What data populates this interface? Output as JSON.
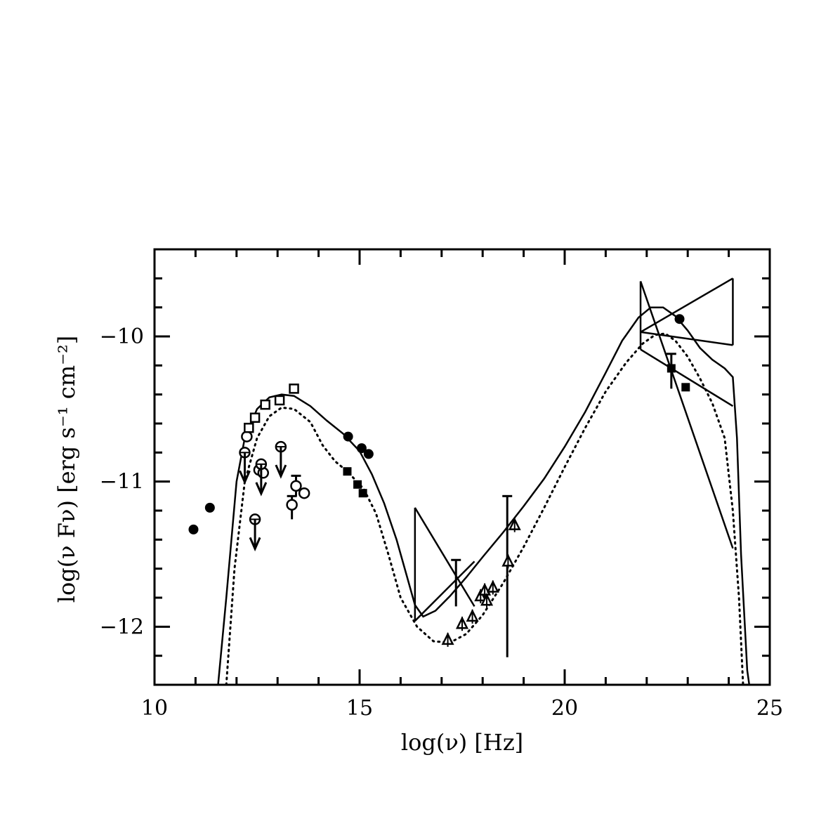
{
  "chart_data": {
    "type": "scatter",
    "xlabel": "log(ν) [Hz]",
    "ylabel": "log(ν Fν) [erg s⁻¹ cm⁻²]",
    "xlim": [
      10,
      25
    ],
    "ylim": [
      -12.4,
      -9.4
    ],
    "x_ticks": [
      10,
      15,
      20,
      25
    ],
    "y_ticks": [
      -12,
      -11,
      -10
    ],
    "grid": false,
    "series": [
      {
        "marker": "filled-circle",
        "points": [
          [
            10.95,
            -11.33
          ],
          [
            11.35,
            -11.18
          ],
          [
            14.72,
            -10.69
          ],
          [
            15.05,
            -10.77
          ],
          [
            15.22,
            -10.81
          ],
          [
            22.8,
            -9.88
          ]
        ]
      },
      {
        "marker": "open-circle",
        "points": [
          [
            12.25,
            -10.69
          ],
          [
            12.55,
            -10.92
          ],
          [
            12.65,
            -10.94
          ],
          [
            13.45,
            -11.03
          ],
          [
            13.35,
            -11.16
          ],
          [
            13.65,
            -11.08
          ]
        ]
      },
      {
        "marker": "open-square",
        "points": [
          [
            12.45,
            -10.56
          ],
          [
            12.7,
            -10.47
          ],
          [
            13.05,
            -10.44
          ],
          [
            13.4,
            -10.36
          ],
          [
            12.3,
            -10.63
          ]
        ]
      },
      {
        "marker": "filled-square",
        "points": [
          [
            14.7,
            -10.93
          ],
          [
            14.95,
            -11.02
          ],
          [
            15.08,
            -11.08
          ],
          [
            22.6,
            -10.22
          ],
          [
            22.95,
            -10.35
          ]
        ]
      },
      {
        "marker": "open-triangle",
        "points": [
          [
            17.15,
            -12.09
          ],
          [
            17.5,
            -11.98
          ],
          [
            17.75,
            -11.93
          ],
          [
            17.95,
            -11.79
          ],
          [
            18.05,
            -11.75
          ],
          [
            18.25,
            -11.73
          ],
          [
            18.1,
            -11.82
          ],
          [
            18.62,
            -11.55
          ],
          [
            18.78,
            -11.3
          ]
        ]
      },
      {
        "marker": "upper-limit-open-circle",
        "points": [
          [
            12.2,
            -10.8
          ],
          [
            12.45,
            -11.26
          ],
          [
            13.08,
            -10.76
          ],
          [
            12.6,
            -10.88
          ]
        ]
      }
    ],
    "curves": [
      {
        "style": "solid",
        "points": [
          [
            11.55,
            -12.4
          ],
          [
            11.75,
            -11.8
          ],
          [
            12.0,
            -11.0
          ],
          [
            12.2,
            -10.7
          ],
          [
            12.5,
            -10.5
          ],
          [
            12.8,
            -10.42
          ],
          [
            13.1,
            -10.4
          ],
          [
            13.4,
            -10.41
          ],
          [
            13.8,
            -10.48
          ],
          [
            14.2,
            -10.58
          ],
          [
            14.6,
            -10.67
          ],
          [
            15.0,
            -10.79
          ],
          [
            15.3,
            -10.95
          ],
          [
            15.6,
            -11.15
          ],
          [
            15.9,
            -11.4
          ],
          [
            16.15,
            -11.65
          ],
          [
            16.35,
            -11.85
          ],
          [
            16.55,
            -11.93
          ],
          [
            16.85,
            -11.89
          ],
          [
            17.2,
            -11.79
          ],
          [
            17.6,
            -11.66
          ],
          [
            18.0,
            -11.52
          ],
          [
            18.5,
            -11.35
          ],
          [
            19.0,
            -11.17
          ],
          [
            19.5,
            -10.98
          ],
          [
            20.0,
            -10.76
          ],
          [
            20.5,
            -10.52
          ],
          [
            21.0,
            -10.25
          ],
          [
            21.4,
            -10.03
          ],
          [
            21.8,
            -9.87
          ],
          [
            22.1,
            -9.8
          ],
          [
            22.4,
            -9.8
          ],
          [
            22.7,
            -9.86
          ],
          [
            23.0,
            -9.96
          ],
          [
            23.3,
            -10.08
          ],
          [
            23.6,
            -10.16
          ],
          [
            23.9,
            -10.22
          ],
          [
            24.1,
            -10.28
          ],
          [
            24.2,
            -10.7
          ],
          [
            24.3,
            -11.5
          ],
          [
            24.45,
            -12.3
          ],
          [
            24.5,
            -12.4
          ]
        ]
      },
      {
        "style": "dotted",
        "points": [
          [
            11.75,
            -12.4
          ],
          [
            11.95,
            -11.6
          ],
          [
            12.2,
            -11.0
          ],
          [
            12.5,
            -10.7
          ],
          [
            12.8,
            -10.55
          ],
          [
            13.1,
            -10.49
          ],
          [
            13.4,
            -10.5
          ],
          [
            13.8,
            -10.59
          ],
          [
            14.1,
            -10.75
          ],
          [
            14.4,
            -10.86
          ],
          [
            14.7,
            -10.93
          ],
          [
            15.1,
            -11.05
          ],
          [
            15.4,
            -11.22
          ],
          [
            15.7,
            -11.5
          ],
          [
            16.0,
            -11.8
          ],
          [
            16.4,
            -12.0
          ],
          [
            16.8,
            -12.1
          ],
          [
            17.2,
            -12.11
          ],
          [
            17.6,
            -12.05
          ],
          [
            18.0,
            -11.92
          ],
          [
            18.5,
            -11.7
          ],
          [
            19.0,
            -11.45
          ],
          [
            19.5,
            -11.18
          ],
          [
            20.0,
            -10.9
          ],
          [
            20.5,
            -10.63
          ],
          [
            21.0,
            -10.38
          ],
          [
            21.5,
            -10.18
          ],
          [
            21.9,
            -10.05
          ],
          [
            22.2,
            -9.99
          ],
          [
            22.45,
            -9.98
          ],
          [
            22.7,
            -10.03
          ],
          [
            23.0,
            -10.14
          ],
          [
            23.3,
            -10.29
          ],
          [
            23.6,
            -10.46
          ],
          [
            23.9,
            -10.7
          ],
          [
            24.1,
            -11.2
          ],
          [
            24.25,
            -11.8
          ],
          [
            24.35,
            -12.4
          ]
        ]
      }
    ],
    "bowties": [
      {
        "lines": [
          [
            [
              16.35,
              -11.18
            ],
            [
              17.8,
              -11.86
            ]
          ],
          [
            [
              16.35,
              -11.96
            ],
            [
              17.8,
              -11.55
            ]
          ],
          [
            [
              16.35,
              -11.18
            ],
            [
              16.35,
              -11.96
            ]
          ]
        ]
      },
      {
        "lines": [
          [
            [
              21.85,
              -9.62
            ],
            [
              24.1,
              -11.46
            ]
          ],
          [
            [
              21.85,
              -10.09
            ],
            [
              24.1,
              -10.48
            ]
          ],
          [
            [
              21.85,
              -9.62
            ],
            [
              21.85,
              -10.09
            ]
          ],
          [
            [
              21.85,
              -9.97
            ],
            [
              24.1,
              -9.6
            ]
          ],
          [
            [
              21.85,
              -9.97
            ],
            [
              24.1,
              -10.06
            ]
          ],
          [
            [
              24.1,
              -9.6
            ],
            [
              24.1,
              -10.06
            ]
          ]
        ]
      }
    ],
    "error_bars": [
      {
        "x": 17.35,
        "low": -11.86,
        "high": -11.54
      },
      {
        "x": 18.6,
        "low": -12.21,
        "high": -11.1
      },
      {
        "x": 22.6,
        "low": -10.36,
        "high": -10.12
      },
      {
        "x": 13.35,
        "low": -11.26,
        "high": -11.1
      },
      {
        "x": 13.45,
        "low": -11.1,
        "high": -10.96
      }
    ]
  }
}
